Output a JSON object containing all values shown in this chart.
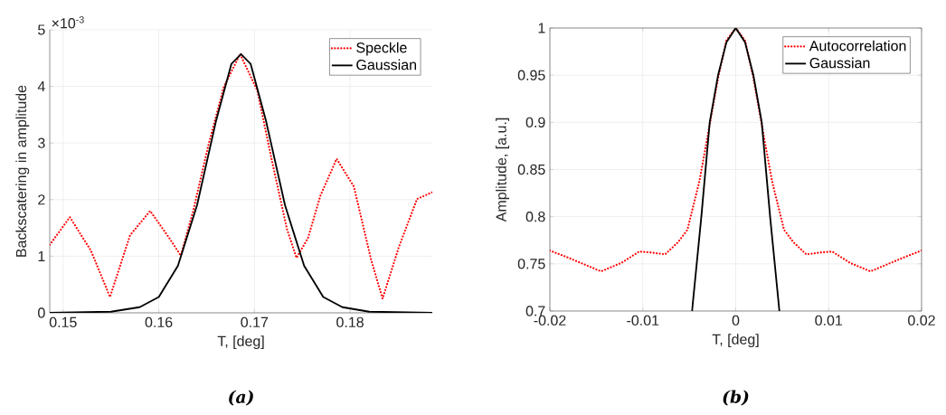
{
  "chart_data": [
    {
      "type": "line",
      "title": "(a)",
      "xlabel": "T, [deg]",
      "ylabel": "Backscatering in amplitude",
      "annotations": [
        "×10$^{-3}$"
      ],
      "xlim": [
        0.1486,
        0.1886
      ],
      "ylim": [
        0,
        5
      ],
      "xticks": [
        0.15,
        0.16,
        0.17,
        0.18
      ],
      "yticks": [
        0,
        1,
        2,
        3,
        4,
        5
      ],
      "grid": true,
      "legend": "top right",
      "series": [
        {
          "name": "Speckle",
          "color": "#ff0000",
          "line_style": "dotted",
          "x": [
            0.1486,
            0.1507,
            0.1529,
            0.1549,
            0.157,
            0.1591,
            0.1611,
            0.1623,
            0.1636,
            0.1652,
            0.1668,
            0.1685,
            0.1703,
            0.1718,
            0.1734,
            0.1744,
            0.1756,
            0.1769,
            0.1786,
            0.1804,
            0.1822,
            0.1834,
            0.1851,
            0.187,
            0.1886
          ],
          "values": [
            1.2,
            1.69,
            1.1,
            0.28,
            1.37,
            1.8,
            1.32,
            1.01,
            1.8,
            2.97,
            3.99,
            4.57,
            3.93,
            2.71,
            1.48,
            0.97,
            1.32,
            2.07,
            2.72,
            2.23,
            0.94,
            0.25,
            1.16,
            2.01,
            2.13
          ]
        },
        {
          "name": "Gaussian",
          "color": "#000000",
          "line_style": "solid",
          "x": [
            0.1486,
            0.155,
            0.158,
            0.16,
            0.162,
            0.164,
            0.166,
            0.1676,
            0.1686,
            0.1696,
            0.1712,
            0.1732,
            0.1752,
            0.1772,
            0.1792,
            0.182,
            0.1886
          ],
          "values": [
            0,
            0.02,
            0.1,
            0.28,
            0.83,
            1.9,
            3.4,
            4.4,
            4.57,
            4.4,
            3.4,
            1.9,
            0.83,
            0.28,
            0.1,
            0.02,
            0
          ]
        }
      ]
    },
    {
      "type": "line",
      "title": "(b)",
      "xlabel": "T, [deg]",
      "ylabel": "Amplitude, [a.u.]",
      "xlim": [
        -0.02,
        0.02
      ],
      "ylim": [
        0.7,
        1
      ],
      "xticks": [
        -0.02,
        -0.01,
        0,
        0.01,
        0.02
      ],
      "yticks": [
        0.7,
        0.75,
        0.8,
        0.85,
        0.9,
        0.95,
        1
      ],
      "grid": true,
      "legend": "top right",
      "series": [
        {
          "name": "Autocorrelation",
          "color": "#ff0000",
          "line_style": "dotted",
          "x": [
            -0.02,
            -0.0179,
            -0.0145,
            -0.0123,
            -0.0104,
            -0.0091,
            -0.0076,
            -0.0062,
            -0.0052,
            -0.0039,
            -0.0029,
            -0.0019,
            -0.001,
            0,
            0.001,
            0.0019,
            0.0029,
            0.0039,
            0.0052,
            0.0062,
            0.0076,
            0.0091,
            0.0104,
            0.0123,
            0.0145,
            0.0179,
            0.02
          ],
          "values": [
            0.764,
            0.756,
            0.742,
            0.751,
            0.763,
            0.762,
            0.76,
            0.773,
            0.786,
            0.838,
            0.892,
            0.947,
            0.987,
            1.0,
            0.987,
            0.947,
            0.892,
            0.838,
            0.786,
            0.773,
            0.76,
            0.762,
            0.763,
            0.751,
            0.742,
            0.756,
            0.764
          ]
        },
        {
          "name": "Gaussian",
          "color": "#000000",
          "line_style": "solid",
          "x": [
            -0.0047,
            -0.0037,
            -0.0028,
            -0.0019,
            -0.001,
            0,
            0.001,
            0.0019,
            0.0028,
            0.0037,
            0.0047
          ],
          "values": [
            0.7,
            0.8,
            0.9,
            0.95,
            0.985,
            1.0,
            0.985,
            0.95,
            0.9,
            0.8,
            0.7
          ]
        }
      ]
    }
  ]
}
